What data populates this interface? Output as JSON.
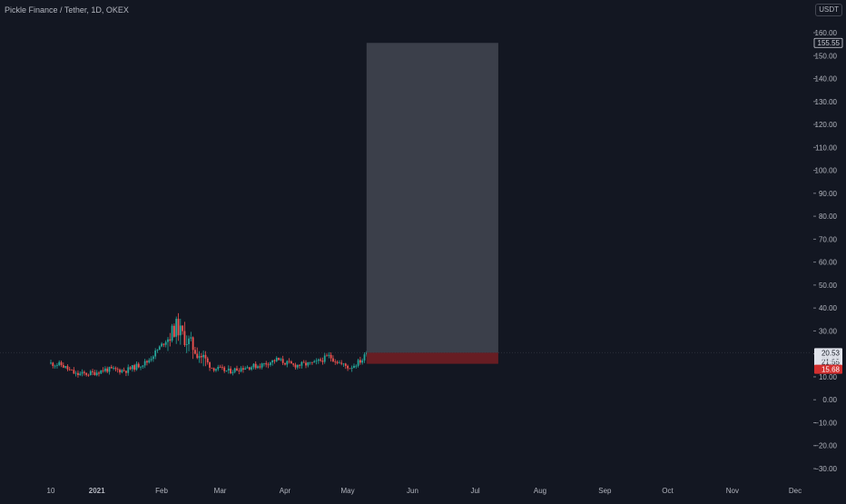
{
  "header": {
    "symbol_title": "Pickle Finance / Tether, 1D, OKEX",
    "currency_button": "USDT"
  },
  "colors": {
    "background": "#131722",
    "up_candle": "#26a69a",
    "down_candle": "#ef5350",
    "target_zone": "#434651",
    "stop_zone": "#6b1e24",
    "axis_text": "#b2b5be",
    "stop_label": "#d32f2f"
  },
  "chart_data": {
    "type": "candlestick",
    "x_ticks": [
      "10",
      "2021",
      "Feb",
      "Mar",
      "Apr",
      "May",
      "Jun",
      "Jul",
      "Aug",
      "Sep",
      "Oct",
      "Nov",
      "Dec"
    ],
    "y_ticks": [
      "160.00",
      "150.00",
      "140.00",
      "130.00",
      "120.00",
      "110.00",
      "100.00",
      "90.00",
      "80.00",
      "70.00",
      "60.00",
      "50.00",
      "40.00",
      "30.00",
      "20.00",
      "10.00",
      "0.00",
      "−10.00",
      "−20.00",
      "−30.00"
    ],
    "y_tick_values": [
      160,
      150,
      140,
      130,
      120,
      110,
      100,
      90,
      80,
      70,
      60,
      50,
      40,
      30,
      20,
      10,
      0,
      -10,
      -20,
      -30
    ],
    "ylim": [
      -33,
      167
    ],
    "x_range": [
      "2020-12-10",
      "2021-12-25"
    ],
    "price_path": [
      {
        "date": "2020-12-10",
        "close": 15.8
      },
      {
        "date": "2020-12-15",
        "close": 15.2
      },
      {
        "date": "2020-12-22",
        "close": 11.0
      },
      {
        "date": "2020-12-30",
        "close": 11.6
      },
      {
        "date": "2021-01-05",
        "close": 13.2
      },
      {
        "date": "2021-01-15",
        "close": 12.8
      },
      {
        "date": "2021-01-25",
        "close": 16.5
      },
      {
        "date": "2021-02-05",
        "close": 28.0
      },
      {
        "date": "2021-02-08",
        "close": 32.0
      },
      {
        "date": "2021-02-12",
        "close": 27.0
      },
      {
        "date": "2021-02-18",
        "close": 21.0
      },
      {
        "date": "2021-02-25",
        "close": 14.0
      },
      {
        "date": "2021-03-05",
        "close": 12.4
      },
      {
        "date": "2021-03-12",
        "close": 14.0
      },
      {
        "date": "2021-03-20",
        "close": 15.0
      },
      {
        "date": "2021-03-28",
        "close": 17.5
      },
      {
        "date": "2021-04-05",
        "close": 15.0
      },
      {
        "date": "2021-04-15",
        "close": 15.8
      },
      {
        "date": "2021-04-22",
        "close": 19.0
      },
      {
        "date": "2021-04-28",
        "close": 15.5
      },
      {
        "date": "2021-05-02",
        "close": 14.0
      },
      {
        "date": "2021-05-08",
        "close": 17.5
      },
      {
        "date": "2021-05-10",
        "close": 20.5
      }
    ],
    "position": {
      "type": "long",
      "start": "2021-05-10",
      "end": "2021-07-12",
      "entry": 20.5,
      "target": 155.55,
      "stop": 15.68
    },
    "price_labels": {
      "target": "155.55",
      "last_price": "20.53",
      "countdown": "21:55",
      "entry": "20.50",
      "stop": "15.68"
    },
    "grid": false
  }
}
